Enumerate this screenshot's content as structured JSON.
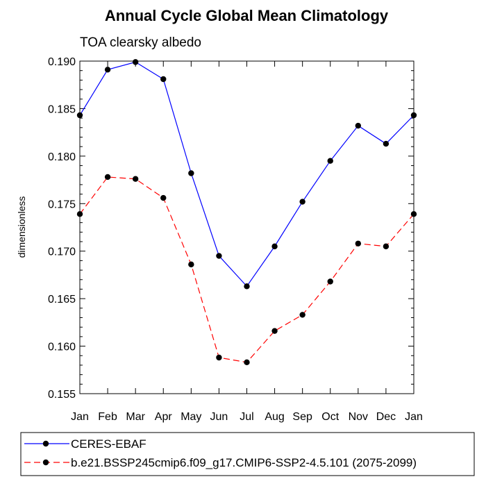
{
  "chart_data": {
    "type": "line",
    "title": "Annual Cycle Global Mean Climatology",
    "subtitle": "TOA clearsky albedo",
    "xlabel": "",
    "ylabel": "dimensionless",
    "categories": [
      "Jan",
      "Feb",
      "Mar",
      "Apr",
      "May",
      "Jun",
      "Jul",
      "Aug",
      "Sep",
      "Oct",
      "Nov",
      "Dec",
      "Jan"
    ],
    "ylim": [
      0.155,
      0.19
    ],
    "yticks": [
      "0.155",
      "0.160",
      "0.165",
      "0.170",
      "0.175",
      "0.180",
      "0.185",
      "0.190"
    ],
    "series": [
      {
        "name": "CERES-EBAF",
        "color": "#0000ff",
        "line_style": "solid",
        "marker": "filled-circle",
        "values": [
          0.1843,
          0.1891,
          0.1899,
          0.1881,
          0.1782,
          0.1695,
          0.1663,
          0.1705,
          0.1752,
          0.1795,
          0.1832,
          0.1813,
          0.1843
        ]
      },
      {
        "name": "b.e21.BSSP245cmip6.f09_g17.CMIP6-SSP2-4.5.101 (2075-2099)",
        "color": "#ff0000",
        "line_style": "dashed",
        "marker": "filled-circle",
        "values": [
          0.1739,
          0.1778,
          0.1776,
          0.1756,
          0.1686,
          0.1588,
          0.1583,
          0.1616,
          0.1633,
          0.1668,
          0.1708,
          0.1705,
          0.1739
        ]
      }
    ],
    "legend_placement": "bottom-left",
    "grid": false
  }
}
